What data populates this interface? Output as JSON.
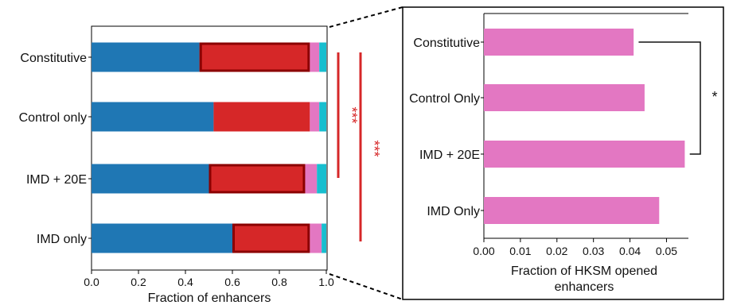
{
  "chart_data": [
    {
      "type": "bar",
      "orientation": "horizontal",
      "stacked": true,
      "categories": [
        "Constitutive",
        "Control only",
        "IMD + 20E",
        "IMD only"
      ],
      "xlabel": "Fraction of enhancers",
      "ylabel": "",
      "xlim": [
        0,
        1.0
      ],
      "xticks": [
        "0.0",
        "0.2",
        "0.4",
        "0.6",
        "0.8",
        "1.0"
      ],
      "series": [
        {
          "color": "#1f77b4",
          "values": [
            0.46,
            0.52,
            0.5,
            0.6
          ]
        },
        {
          "color": "#d62728",
          "values": [
            0.47,
            0.41,
            0.41,
            0.33
          ]
        },
        {
          "color": "#e377c2",
          "values": [
            0.04,
            0.04,
            0.05,
            0.05
          ]
        },
        {
          "color": "#17becf",
          "values": [
            0.03,
            0.03,
            0.04,
            0.02
          ]
        }
      ],
      "highlighted_series": "#d62728",
      "highlighted_categories": [
        "Constitutive",
        "IMD + 20E",
        "IMD only"
      ],
      "highlight_outline_color": "#8b0000",
      "significance": [
        {
          "label": "***",
          "color": "#d62728",
          "groups": [
            "Constitutive",
            "IMD + 20E"
          ]
        },
        {
          "label": "***",
          "color": "#d62728",
          "groups": [
            "Constitutive",
            "IMD only"
          ]
        }
      ]
    },
    {
      "type": "bar",
      "orientation": "horizontal",
      "categories": [
        "Constitutive",
        "Control Only",
        "IMD + 20E",
        "IMD Only"
      ],
      "values": [
        0.041,
        0.044,
        0.055,
        0.048
      ],
      "color": "#e377c2",
      "xlabel": "Fraction of HKSM opened enhancers",
      "xlabel_lines": [
        "Fraction of HKSM opened",
        "enhancers"
      ],
      "ylabel": "",
      "xlim": [
        0,
        0.056
      ],
      "xticks": [
        "0.00",
        "0.01",
        "0.02",
        "0.03",
        "0.04",
        "0.05"
      ],
      "significance": [
        {
          "label": "*",
          "color": "#111111",
          "groups": [
            "Constitutive",
            "IMD + 20E"
          ]
        }
      ]
    }
  ]
}
